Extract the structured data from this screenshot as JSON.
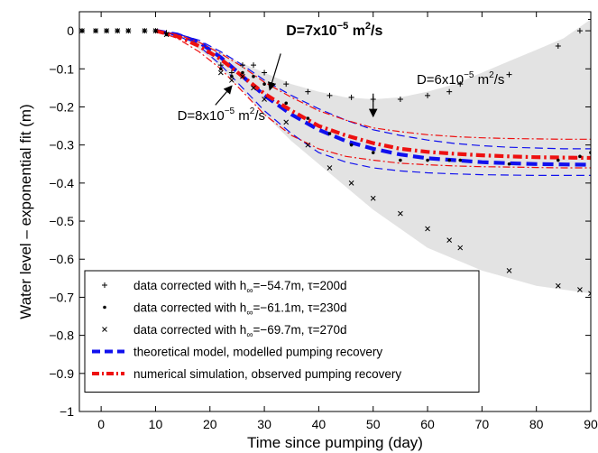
{
  "chart_data": {
    "type": "line",
    "title": "",
    "xlabel": "Time since pumping (day)",
    "ylabel": "Water level – exponential fit (m)",
    "xlim": [
      -4,
      90
    ],
    "ylim": [
      -1,
      0.05
    ],
    "xticks": [
      0,
      10,
      20,
      30,
      40,
      50,
      60,
      70,
      80,
      90
    ],
    "yticks": [
      0,
      -0.1,
      -0.2,
      -0.3,
      -0.4,
      -0.5,
      -0.6,
      -0.7,
      -0.8,
      -0.9,
      -1
    ],
    "ytick_labels": [
      "0",
      "−0.1",
      "−0.2",
      "−0.3",
      "−0.4",
      "−0.5",
      "−0.6",
      "−0.7",
      "−0.8",
      "−0.9",
      "−1"
    ],
    "grid": false,
    "legend_position": "bottom-left",
    "envelope": {
      "color": "#e3e3e3",
      "x": [
        -4,
        10,
        15,
        20,
        25,
        30,
        35,
        40,
        45,
        50,
        55,
        60,
        65,
        70,
        75,
        80,
        85,
        90
      ],
      "upper": [
        0.0,
        0.0,
        -0.01,
        -0.04,
        -0.08,
        -0.11,
        -0.14,
        -0.16,
        -0.175,
        -0.18,
        -0.175,
        -0.16,
        -0.14,
        -0.11,
        -0.08,
        -0.05,
        -0.02,
        0.03
      ],
      "lower": [
        0.0,
        0.0,
        -0.02,
        -0.07,
        -0.14,
        -0.22,
        -0.29,
        -0.35,
        -0.41,
        -0.47,
        -0.52,
        -0.57,
        -0.6,
        -0.63,
        -0.65,
        -0.67,
        -0.68,
        -0.69
      ]
    },
    "data_series": [
      {
        "name": "data corrected with h∞=−54.7m, τ=200d",
        "marker": "plus",
        "points": [
          [
            -3.5,
            0.0
          ],
          [
            -1,
            0.0
          ],
          [
            1,
            0.0
          ],
          [
            3,
            0.0
          ],
          [
            5,
            0.0
          ],
          [
            8,
            0.0
          ],
          [
            10,
            0.0
          ],
          [
            12,
            -0.005
          ],
          [
            22,
            -0.09
          ],
          [
            24,
            -0.11
          ],
          [
            26,
            -0.09
          ],
          [
            28,
            -0.09
          ],
          [
            30,
            -0.11
          ],
          [
            34,
            -0.14
          ],
          [
            38,
            -0.16
          ],
          [
            42,
            -0.17
          ],
          [
            46,
            -0.175
          ],
          [
            50,
            -0.18
          ],
          [
            55,
            -0.18
          ],
          [
            60,
            -0.17
          ],
          [
            64,
            -0.16
          ],
          [
            66,
            -0.14
          ],
          [
            75,
            -0.115
          ],
          [
            84,
            -0.04
          ],
          [
            88,
            0.0
          ],
          [
            90,
            0.03
          ]
        ]
      },
      {
        "name": "data corrected with h∞=−61.1m, τ=230d",
        "marker": "dot",
        "points": [
          [
            -3.5,
            0.0
          ],
          [
            -1,
            0.0
          ],
          [
            1,
            0.0
          ],
          [
            3,
            0.0
          ],
          [
            5,
            0.0
          ],
          [
            8,
            0.0
          ],
          [
            10,
            0.0
          ],
          [
            12,
            -0.01
          ],
          [
            22,
            -0.1
          ],
          [
            24,
            -0.12
          ],
          [
            26,
            -0.11
          ],
          [
            28,
            -0.12
          ],
          [
            30,
            -0.14
          ],
          [
            34,
            -0.19
          ],
          [
            38,
            -0.23
          ],
          [
            42,
            -0.27
          ],
          [
            46,
            -0.3
          ],
          [
            50,
            -0.32
          ],
          [
            55,
            -0.34
          ],
          [
            60,
            -0.34
          ],
          [
            64,
            -0.34
          ],
          [
            66,
            -0.34
          ],
          [
            75,
            -0.35
          ],
          [
            84,
            -0.34
          ],
          [
            88,
            -0.33
          ],
          [
            90,
            -0.32
          ]
        ]
      },
      {
        "name": "data corrected with h∞=−69.7m, τ=270d",
        "marker": "cross",
        "points": [
          [
            -3.5,
            0.0
          ],
          [
            -1,
            0.0
          ],
          [
            1,
            0.0
          ],
          [
            3,
            0.0
          ],
          [
            5,
            0.0
          ],
          [
            8,
            0.0
          ],
          [
            10,
            0.0
          ],
          [
            12,
            -0.01
          ],
          [
            22,
            -0.11
          ],
          [
            24,
            -0.13
          ],
          [
            26,
            -0.12
          ],
          [
            28,
            -0.15
          ],
          [
            30,
            -0.18
          ],
          [
            34,
            -0.24
          ],
          [
            38,
            -0.3
          ],
          [
            42,
            -0.36
          ],
          [
            46,
            -0.4
          ],
          [
            50,
            -0.44
          ],
          [
            55,
            -0.48
          ],
          [
            60,
            -0.52
          ],
          [
            64,
            -0.55
          ],
          [
            66,
            -0.57
          ],
          [
            75,
            -0.63
          ],
          [
            84,
            -0.67
          ],
          [
            88,
            -0.68
          ],
          [
            90,
            -0.69
          ]
        ]
      }
    ],
    "model_series": [
      {
        "name": "theoretical model, modelled pumping recovery",
        "style": "blue-dash-bold",
        "color": "#1010ee",
        "x": [
          10,
          14,
          18,
          22,
          26,
          30,
          35,
          40,
          45,
          50,
          55,
          60,
          65,
          70,
          75,
          80,
          85,
          90
        ],
        "y": [
          0.0,
          -0.01,
          -0.03,
          -0.07,
          -0.12,
          -0.17,
          -0.22,
          -0.26,
          -0.29,
          -0.31,
          -0.325,
          -0.335,
          -0.34,
          -0.345,
          -0.348,
          -0.35,
          -0.351,
          -0.352
        ]
      },
      {
        "name": "theoretical model, D=6",
        "style": "blue-dash-thin",
        "color": "#1010ee",
        "x": [
          10,
          14,
          18,
          22,
          26,
          30,
          35,
          40,
          45,
          50,
          55,
          60,
          65,
          70,
          75,
          80,
          85,
          90
        ],
        "y": [
          0.0,
          -0.008,
          -0.025,
          -0.055,
          -0.09,
          -0.13,
          -0.17,
          -0.205,
          -0.235,
          -0.26,
          -0.275,
          -0.287,
          -0.296,
          -0.302,
          -0.306,
          -0.308,
          -0.31,
          -0.31
        ]
      },
      {
        "name": "theoretical model, D=8",
        "style": "blue-dash-thin",
        "color": "#1010ee",
        "x": [
          10,
          14,
          18,
          22,
          26,
          30,
          35,
          40,
          45,
          50,
          55,
          60,
          65,
          70,
          75,
          80,
          85,
          90
        ],
        "y": [
          0.0,
          -0.012,
          -0.04,
          -0.09,
          -0.15,
          -0.21,
          -0.27,
          -0.32,
          -0.345,
          -0.36,
          -0.368,
          -0.373,
          -0.376,
          -0.378,
          -0.379,
          -0.38,
          -0.38,
          -0.38
        ]
      },
      {
        "name": "numerical simulation, observed pumping recovery",
        "style": "red-dashdot-bold",
        "color": "#ee1010",
        "x": [
          10,
          14,
          18,
          22,
          26,
          30,
          35,
          40,
          45,
          50,
          55,
          60,
          65,
          70,
          75,
          80,
          85,
          90
        ],
        "y": [
          0.0,
          -0.015,
          -0.04,
          -0.075,
          -0.12,
          -0.165,
          -0.21,
          -0.25,
          -0.275,
          -0.295,
          -0.31,
          -0.318,
          -0.323,
          -0.327,
          -0.33,
          -0.332,
          -0.333,
          -0.334
        ]
      },
      {
        "name": "numerical simulation, D=6",
        "style": "red-dashdot-thin",
        "color": "#ee1010",
        "x": [
          10,
          14,
          18,
          22,
          26,
          30,
          35,
          40,
          45,
          50,
          55,
          60,
          65,
          70,
          75,
          80,
          85,
          90
        ],
        "y": [
          0.0,
          -0.01,
          -0.03,
          -0.06,
          -0.095,
          -0.135,
          -0.175,
          -0.21,
          -0.235,
          -0.255,
          -0.265,
          -0.273,
          -0.278,
          -0.281,
          -0.283,
          -0.284,
          -0.285,
          -0.285
        ]
      },
      {
        "name": "numerical simulation, D=8",
        "style": "red-dashdot-thin",
        "color": "#ee1010",
        "x": [
          10,
          14,
          18,
          22,
          26,
          30,
          35,
          40,
          45,
          50,
          55,
          60,
          65,
          70,
          75,
          80,
          85,
          90
        ],
        "y": [
          0.0,
          -0.02,
          -0.055,
          -0.1,
          -0.16,
          -0.22,
          -0.275,
          -0.31,
          -0.33,
          -0.34,
          -0.348,
          -0.352,
          -0.355,
          -0.357,
          -0.358,
          -0.359,
          -0.36,
          -0.36
        ]
      }
    ],
    "legend": [
      {
        "marker": "plus",
        "prefix": "data corrected with h",
        "sub": "∞",
        "suffix": "=−54.7m, τ=200d"
      },
      {
        "marker": "dot",
        "prefix": "data corrected with h",
        "sub": "∞",
        "suffix": "=−61.1m, τ=230d"
      },
      {
        "marker": "cross",
        "prefix": "data corrected with h",
        "sub": "∞",
        "suffix": "=−69.7m, τ=270d"
      },
      {
        "marker": "blue-dash",
        "prefix": "theoretical model, modelled pumping recovery",
        "sub": "",
        "suffix": ""
      },
      {
        "marker": "red-dashdot",
        "prefix": "numerical simulation, observed pumping recovery",
        "sub": "",
        "suffix": ""
      }
    ],
    "annotations": [
      {
        "base": "D=7x10",
        "exp": "−5",
        "unit": " m",
        "unit_exp": "2",
        "tail": "/s",
        "bold": true,
        "text_at": [
          34,
          -0.012
        ],
        "arrow_from": [
          33,
          -0.06
        ],
        "arrow_to": [
          31,
          -0.155
        ]
      },
      {
        "base": "D=6x10",
        "exp": "−5",
        "unit": " m",
        "unit_exp": "2",
        "tail": "/s",
        "bold": false,
        "text_at": [
          58,
          -0.14
        ],
        "arrow_from": [
          50,
          -0.165
        ],
        "arrow_to": [
          50,
          -0.225
        ]
      },
      {
        "base": "D=8x10",
        "exp": "−5",
        "unit": " m",
        "unit_exp": "2",
        "tail": "/s",
        "bold": false,
        "text_at": [
          14,
          -0.235
        ],
        "arrow_from": [
          21,
          -0.195
        ],
        "arrow_to": [
          24,
          -0.145
        ]
      }
    ]
  }
}
